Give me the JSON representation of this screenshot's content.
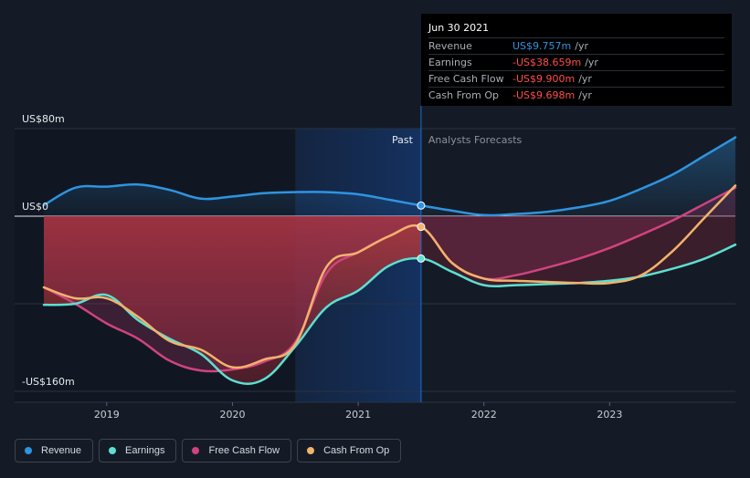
{
  "colors": {
    "revenue": "#2f94e0",
    "earnings": "#5ce0d2",
    "fcf": "#d0437f",
    "cfo": "#f2b36b",
    "negative_value": "#ff4d4d",
    "positive_value": "#2f94e0"
  },
  "tooltip": {
    "date": "Jun 30 2021",
    "rows": [
      {
        "label": "Revenue",
        "value": "US$9.757m",
        "unit": "/yr",
        "series": "revenue"
      },
      {
        "label": "Earnings",
        "value": "-US$38.659m",
        "unit": "/yr",
        "series": "earnings"
      },
      {
        "label": "Free Cash Flow",
        "value": "-US$9.900m",
        "unit": "/yr",
        "series": "fcf"
      },
      {
        "label": "Cash From Op",
        "value": "-US$9.698m",
        "unit": "/yr",
        "series": "cfo"
      }
    ]
  },
  "legend": [
    {
      "label": "Revenue",
      "series": "revenue"
    },
    {
      "label": "Earnings",
      "series": "earnings"
    },
    {
      "label": "Free Cash Flow",
      "series": "fcf"
    },
    {
      "label": "Cash From Op",
      "series": "cfo"
    }
  ],
  "chart_data": {
    "type": "line",
    "title": "",
    "xlabel": "",
    "ylabel": "",
    "y_tick_labels": [
      "US$80m",
      "US$0",
      "-US$160m"
    ],
    "y_ticks": [
      80,
      0,
      -160
    ],
    "ylim": [
      -160,
      80
    ],
    "xlim": [
      2018.5,
      2024.0
    ],
    "x_ticks": [
      2019,
      2020,
      2021,
      2022,
      2023
    ],
    "x_tick_labels": [
      "2019",
      "2020",
      "2021",
      "2022",
      "2023"
    ],
    "past_label": "Past",
    "forecast_label": "Analysts Forecasts",
    "divider_x": 2021.5,
    "highlight_start_x": 2020.5,
    "series": [
      {
        "name": "Revenue",
        "key": "revenue",
        "x": [
          2018.5,
          2018.75,
          2019.0,
          2019.25,
          2019.5,
          2019.75,
          2020.0,
          2020.25,
          2020.5,
          2020.75,
          2021.0,
          2021.25,
          2021.5,
          2021.75,
          2022.0,
          2022.25,
          2022.5,
          2022.75,
          2023.0,
          2023.25,
          2023.5,
          2023.75,
          2024.0
        ],
        "y": [
          10,
          26,
          27,
          29,
          24,
          16,
          18,
          21,
          22,
          22,
          20,
          15,
          9.757,
          5,
          1,
          2,
          4,
          8,
          14,
          25,
          38,
          55,
          72
        ]
      },
      {
        "name": "Earnings",
        "key": "earnings",
        "x": [
          2018.5,
          2018.75,
          2019.0,
          2019.25,
          2019.5,
          2019.75,
          2020.0,
          2020.25,
          2020.5,
          2020.75,
          2021.0,
          2021.25,
          2021.5,
          2021.75,
          2022.0,
          2022.25,
          2022.5,
          2022.75,
          2023.0,
          2023.25,
          2023.5,
          2023.75,
          2024.0
        ],
        "y": [
          -81,
          -80,
          -72,
          -95,
          -112,
          -126,
          -150,
          -149,
          -119,
          -83,
          -68,
          -45,
          -38.659,
          -51,
          -63,
          -63,
          -62,
          -61,
          -59,
          -55,
          -48,
          -39,
          -26
        ]
      },
      {
        "name": "Free Cash Flow",
        "key": "fcf",
        "x": [
          2018.5,
          2018.75,
          2019.0,
          2019.25,
          2019.5,
          2019.75,
          2020.0,
          2020.25,
          2020.5,
          2020.75,
          2021.0,
          2021.25,
          2021.5,
          2021.75,
          2022.0,
          2022.25,
          2022.5,
          2022.75,
          2023.0,
          2023.25,
          2023.5,
          2023.75,
          2024.0
        ],
        "y": [
          -65,
          -80,
          -98,
          -112,
          -132,
          -141,
          -140,
          -133,
          -115,
          -52,
          -33,
          -18,
          -9.9,
          -43,
          -57,
          -54,
          -47,
          -39,
          -29,
          -17,
          -4,
          11,
          26
        ]
      },
      {
        "name": "Cash From Op",
        "key": "cfo",
        "x": [
          2018.5,
          2018.75,
          2019.0,
          2019.25,
          2019.5,
          2019.75,
          2020.0,
          2020.25,
          2020.5,
          2020.75,
          2021.0,
          2021.25,
          2021.5,
          2021.75,
          2022.0,
          2022.25,
          2022.5,
          2022.75,
          2023.0,
          2023.25,
          2023.5,
          2023.75,
          2024.0
        ],
        "y": [
          -65,
          -75,
          -75,
          -92,
          -114,
          -122,
          -138,
          -131,
          -117,
          -46,
          -33,
          -18,
          -9.698,
          -43,
          -57,
          -59,
          -60,
          -61,
          -61,
          -54,
          -32,
          -2,
          28
        ]
      }
    ],
    "hover_x": 2021.5
  }
}
